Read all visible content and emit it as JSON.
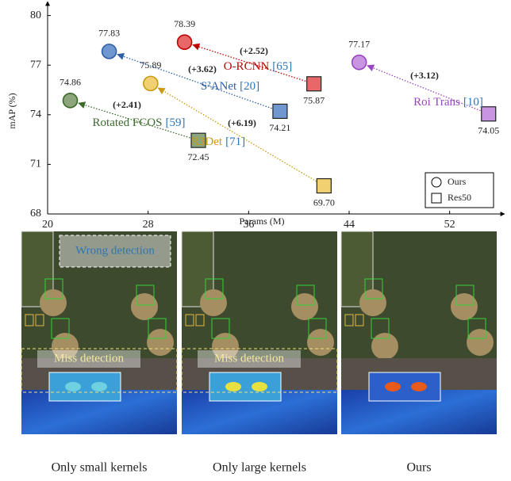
{
  "chart_data": {
    "type": "scatter",
    "x_label": "Params (M)",
    "y_label": "mAP  (%)",
    "xlim": [
      20,
      56
    ],
    "ylim": [
      68,
      80.7
    ],
    "xticks": [
      20,
      28,
      36,
      44,
      52
    ],
    "yticks": [
      68,
      71,
      74,
      77,
      80
    ],
    "legend": "lower right",
    "methods": [
      {
        "name": "Rotated FCOS",
        "cite": "[59]",
        "gain": "(+2.41)",
        "color": "#3b6b2c",
        "fill": "#8ca57c"
      },
      {
        "name": "R3Det",
        "cite": "[71]",
        "gain": "(+6.19)",
        "color": "#c99a12",
        "fill": "#f1d071"
      },
      {
        "name": "S²ANet",
        "cite": "[20]",
        "gain": "(+3.62)",
        "color": "#2f5fa6",
        "fill": "#7097cf"
      },
      {
        "name": "O-RCNN",
        "cite": "[65]",
        "gain": "(+2.52)",
        "color": "#c00000",
        "fill": "#e8686a"
      },
      {
        "name": "Roi Trans",
        "cite": "[10]",
        "gain": "(+3.12)",
        "color": "#9846c0",
        "fill": "#c994e2"
      }
    ],
    "cite_color": "#2e75b6",
    "series": [
      {
        "name": "Ours",
        "x": [
          21.8,
          28.2,
          24.9,
          30.9,
          44.8
        ],
        "values": [
          74.86,
          75.89,
          77.83,
          78.39,
          77.17
        ]
      },
      {
        "name": "Res50",
        "x": [
          32.0,
          42.0,
          38.5,
          41.2,
          55.1
        ],
        "values": [
          72.45,
          69.7,
          74.21,
          75.87,
          74.05
        ],
        "value_labels": [
          "72.45",
          "69.70",
          "74.21",
          "75.87",
          "74.05"
        ]
      }
    ]
  },
  "panels": [
    {
      "caption": "Only small kernels",
      "annotations": [
        "Wrong detection",
        "Miss detection"
      ]
    },
    {
      "caption": "Only large kernels",
      "annotations": [
        "Miss detection"
      ]
    },
    {
      "caption": "Ours",
      "annotations": []
    }
  ]
}
